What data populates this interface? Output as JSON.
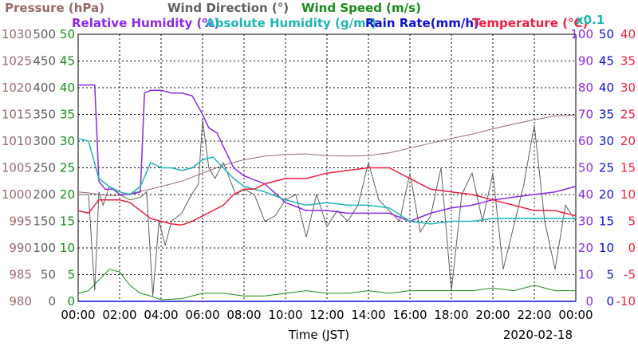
{
  "chart_data": {
    "type": "line",
    "xlabel": "Time (JST)",
    "date": "2020-02-18",
    "x_ticks": [
      "00:00",
      "02:00",
      "04:00",
      "06:00",
      "08:00",
      "10:00",
      "12:00",
      "14:00",
      "16:00",
      "18:00",
      "20:00",
      "22:00",
      "00:00"
    ],
    "x_range": [
      0,
      24
    ],
    "headers": {
      "pressure": "Pressure (hPa)",
      "wind_dir": "Wind Direction (°)",
      "wind_speed": "Wind Speed (m/s)",
      "rel_hum": "Relative Humidity (%)",
      "abs_hum": "Absolute Humidity (g/m³)",
      "rain": "Rain Rate(mm/h)",
      "temp": "Temperature (°C)",
      "x01": "x0.1"
    },
    "axes": {
      "pressure": {
        "range": [
          980,
          1030
        ],
        "ticks": [
          "1030",
          "1025",
          "1020",
          "1015",
          "1010",
          "1005",
          "1000",
          "995",
          "990",
          "985",
          "980"
        ]
      },
      "wind_dir": {
        "range": [
          0,
          500
        ],
        "ticks": [
          "500",
          "450",
          "400",
          "350",
          "300",
          "250",
          "200",
          "150",
          "100",
          "50",
          "0"
        ]
      },
      "wind_speed": {
        "range": [
          0,
          50
        ],
        "ticks": [
          "50",
          "45",
          "40",
          "35",
          "30",
          "25",
          "20",
          "15",
          "10",
          "5",
          "0"
        ]
      },
      "rel_hum": {
        "range": [
          0,
          100
        ],
        "ticks": [
          "100",
          "90",
          "80",
          "70",
          "60",
          "50",
          "40",
          "30",
          "20",
          "10",
          "0"
        ]
      },
      "rain": {
        "range": [
          0,
          50
        ],
        "ticks": [
          "50",
          "45",
          "40",
          "35",
          "30",
          "25",
          "20",
          "15",
          "10",
          "5",
          "0"
        ]
      },
      "temp": {
        "range": [
          -10,
          40
        ],
        "ticks": [
          "40",
          "35",
          "30",
          "25",
          "20",
          "15",
          "10",
          "5",
          "0",
          "-5",
          "-10"
        ]
      }
    },
    "colors": {
      "pressure": "#9a6a6a",
      "wind_dir": "#606060",
      "wind_speed": "#1a8a1a",
      "rel_hum": "#8a2be2",
      "abs_hum": "#1fb5b5",
      "rain": "#1010d0",
      "temp": "#ee2040"
    },
    "series": [
      {
        "name": "Pressure (hPa)",
        "key": "pressure",
        "x": [
          0,
          0.5,
          1,
          1.5,
          2,
          2.5,
          3,
          3.5,
          4,
          5,
          6,
          7,
          8,
          9,
          10,
          11,
          12,
          13,
          14,
          15,
          16,
          17,
          18,
          19,
          20,
          21,
          22,
          23,
          24
        ],
        "y": [
          1000.5,
          1000.3,
          1000,
          999.8,
          999.8,
          1000.2,
          1000.6,
          1001,
          1001.5,
          1002.5,
          1004,
          1005.5,
          1006.5,
          1007.2,
          1007.5,
          1007.6,
          1007.3,
          1007.2,
          1007.3,
          1007.8,
          1008.7,
          1009.6,
          1010.5,
          1011.3,
          1012.3,
          1013.2,
          1014,
          1014.7,
          1014.9
        ]
      },
      {
        "name": "Wind Direction (°)",
        "key": "wind_dir",
        "x": [
          0,
          0.5,
          0.8,
          1,
          1.2,
          1.5,
          2,
          2.5,
          3,
          3.3,
          3.6,
          3.9,
          4.2,
          4.5,
          5,
          5.4,
          5.8,
          6,
          6.3,
          6.6,
          7,
          7.3,
          7.6,
          8,
          8.5,
          9,
          9.5,
          10,
          10.5,
          11,
          11.5,
          12,
          12.5,
          13,
          13.5,
          14,
          14.5,
          15,
          15.5,
          16,
          16.5,
          17,
          17.5,
          18,
          18.5,
          19,
          19.5,
          20,
          20.5,
          21,
          21.5,
          22,
          22.5,
          23,
          23.5,
          24
        ],
        "y": [
          200,
          200,
          20,
          205,
          180,
          215,
          200,
          190,
          195,
          205,
          10,
          150,
          105,
          150,
          165,
          195,
          220,
          340,
          250,
          230,
          260,
          230,
          200,
          210,
          200,
          150,
          160,
          190,
          200,
          120,
          200,
          140,
          170,
          150,
          180,
          260,
          190,
          170,
          150,
          240,
          130,
          160,
          250,
          20,
          200,
          240,
          150,
          240,
          60,
          140,
          220,
          330,
          150,
          60,
          180,
          150
        ]
      },
      {
        "name": "Wind Speed (m/s)",
        "key": "wind_speed",
        "x": [
          0,
          0.5,
          1,
          1.5,
          2,
          2.5,
          3,
          3.5,
          4,
          5,
          6,
          7,
          8,
          9,
          10,
          11,
          12,
          13,
          14,
          15,
          16,
          17,
          18,
          19,
          20,
          21,
          22,
          23,
          24
        ],
        "y": [
          1.5,
          2,
          4,
          6,
          5.5,
          3,
          1.5,
          1,
          0.3,
          0.5,
          1.5,
          1.5,
          1,
          1,
          1.5,
          2,
          1.5,
          1.5,
          2,
          1.5,
          2,
          2,
          2,
          2,
          2.5,
          2,
          3,
          2,
          2
        ]
      },
      {
        "name": "Relative Humidity (%)",
        "key": "rel_hum",
        "x": [
          0,
          0.4,
          0.8,
          1,
          1.3,
          1.7,
          2,
          2.5,
          3,
          3.2,
          3.5,
          4,
          4.5,
          5,
          5.5,
          6,
          6.3,
          6.7,
          7,
          7.5,
          8,
          9,
          10,
          11,
          12,
          13,
          14,
          15,
          16,
          17,
          18,
          19,
          20,
          21,
          22,
          23,
          24
        ],
        "y": [
          81,
          81,
          81,
          45,
          42,
          42,
          40,
          40,
          41,
          78,
          79,
          79,
          78,
          78,
          77,
          70,
          65,
          63,
          58,
          50,
          47,
          44,
          37,
          34,
          34,
          33,
          33,
          33,
          30,
          33,
          35,
          36,
          38,
          39,
          40,
          41,
          43
        ]
      },
      {
        "name": "Absolute Humidity (g/m³)",
        "key": "abs_hum",
        "x": [
          0,
          0.5,
          1,
          1.5,
          2,
          2.5,
          3,
          3.5,
          4,
          4.5,
          5,
          5.5,
          6,
          6.5,
          7,
          7.5,
          8,
          9,
          10,
          11,
          12,
          13,
          14,
          15,
          16,
          17,
          18,
          19,
          20,
          21,
          22,
          23,
          24
        ],
        "y": [
          6.1,
          6.0,
          4.6,
          4.3,
          4.1,
          4.0,
          4.3,
          5.2,
          5.0,
          5.0,
          4.9,
          5.0,
          5.3,
          5.4,
          5.0,
          4.6,
          4.3,
          4.1,
          3.8,
          3.6,
          3.7,
          3.6,
          3.6,
          3.5,
          3.0,
          2.9,
          3.0,
          3.0,
          3.1,
          3.1,
          3.1,
          3.1,
          3.1
        ]
      },
      {
        "name": "Rain Rate(mm/h)",
        "key": "rain",
        "x": [
          0,
          24
        ],
        "y": [
          0,
          0
        ]
      },
      {
        "name": "Temperature (°C)",
        "key": "temp",
        "x": [
          0,
          0.5,
          1,
          1.5,
          2,
          2.5,
          3,
          3.5,
          4,
          4.5,
          5,
          5.5,
          6,
          6.5,
          7,
          7.5,
          8,
          8.5,
          9,
          10,
          11,
          12,
          13,
          14,
          15,
          16,
          17,
          18,
          19,
          20,
          21,
          22,
          23,
          24
        ],
        "y": [
          7,
          6.5,
          9,
          9,
          9,
          8.5,
          7,
          5.5,
          5,
          4.5,
          4.3,
          5,
          6,
          7,
          8,
          10,
          11,
          11,
          12,
          13,
          13,
          14,
          14.5,
          15,
          15,
          13,
          11,
          10.5,
          10,
          9,
          8,
          7,
          7,
          6
        ]
      }
    ]
  }
}
